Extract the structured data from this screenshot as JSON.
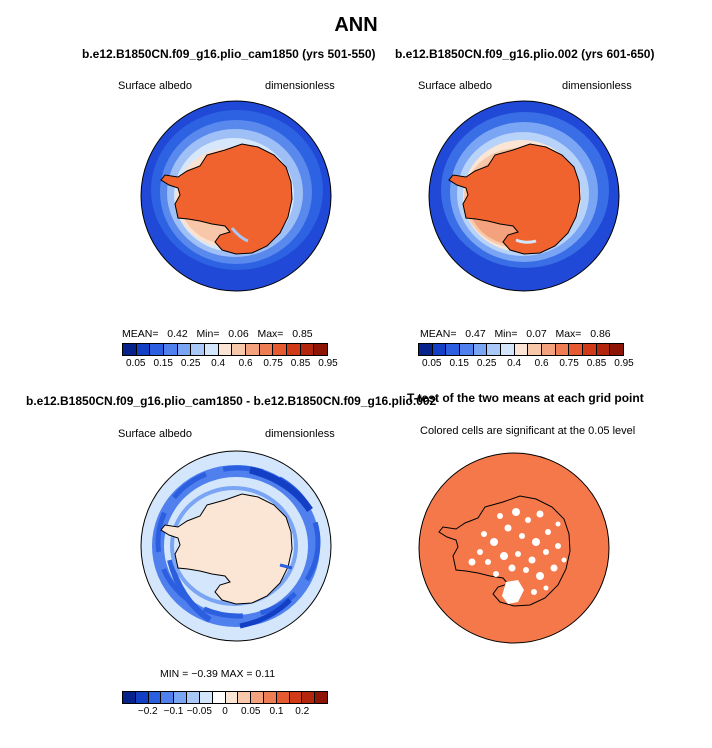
{
  "figure": {
    "title": "ANN"
  },
  "panels": {
    "p1": {
      "title": "b.e12.B1850CN.f09_g16.plio_cam1850 (yrs 501-550)",
      "left_label": "Surface albedo",
      "right_label": "dimensionless",
      "stats": {
        "mean_label": "MEAN=",
        "mean": "0.42",
        "min_label": "Min=",
        "min": "0.06",
        "max_label": "Max=",
        "max": "0.85"
      }
    },
    "p2": {
      "title": "b.e12.B1850CN.f09_g16.plio.002 (yrs 601-650)",
      "left_label": "Surface albedo",
      "right_label": "dimensionless",
      "stats": {
        "mean_label": "MEAN=",
        "mean": "0.47",
        "min_label": "Min=",
        "min": "0.07",
        "max_label": "Max=",
        "max": "0.86"
      }
    },
    "p3": {
      "title": "b.e12.B1850CN.f09_g16.plio_cam1850 - b.e12.B1850CN.f09_g16.plio.002",
      "left_label": "Surface albedo",
      "right_label": "dimensionless",
      "stats_text": "MIN =  −0.39  MAX =    0.11"
    },
    "p4": {
      "title": "T-test of the two means at each grid point",
      "subtitle": "Colored cells are significant at the 0.05 level"
    }
  },
  "colorbars": {
    "albedo": {
      "colors": [
        "#08228c",
        "#123fc4",
        "#2b5fe0",
        "#4f80ee",
        "#7aa4f4",
        "#a9c8f8",
        "#d4e6fb",
        "#fbe6d5",
        "#f8c8ab",
        "#f4a27d",
        "#ee7d54",
        "#e55a30",
        "#d13a16",
        "#b3250c",
        "#8e1505"
      ],
      "labels": [
        "0.05",
        "0.15",
        "0.25",
        "0.4",
        "0.6",
        "0.75",
        "0.85",
        "0.95"
      ]
    },
    "diff": {
      "colors": [
        "#08228c",
        "#123fc4",
        "#2b5fe0",
        "#4f80ee",
        "#7aa4f4",
        "#a9c8f8",
        "#d4e6fb",
        "#ffffff",
        "#fbe6d5",
        "#f8c8ab",
        "#f4a27d",
        "#ee7d54",
        "#e55a30",
        "#d13a16",
        "#b3250c",
        "#8e1505"
      ],
      "labels": [
        "−0.2",
        "−0.1",
        "−0.05",
        "0",
        "0.05",
        "0.1",
        "0.2"
      ]
    }
  },
  "colors": {
    "ice": "#f0622e",
    "ttest": "#f4784a",
    "ocean_far": "#1f49d6"
  }
}
